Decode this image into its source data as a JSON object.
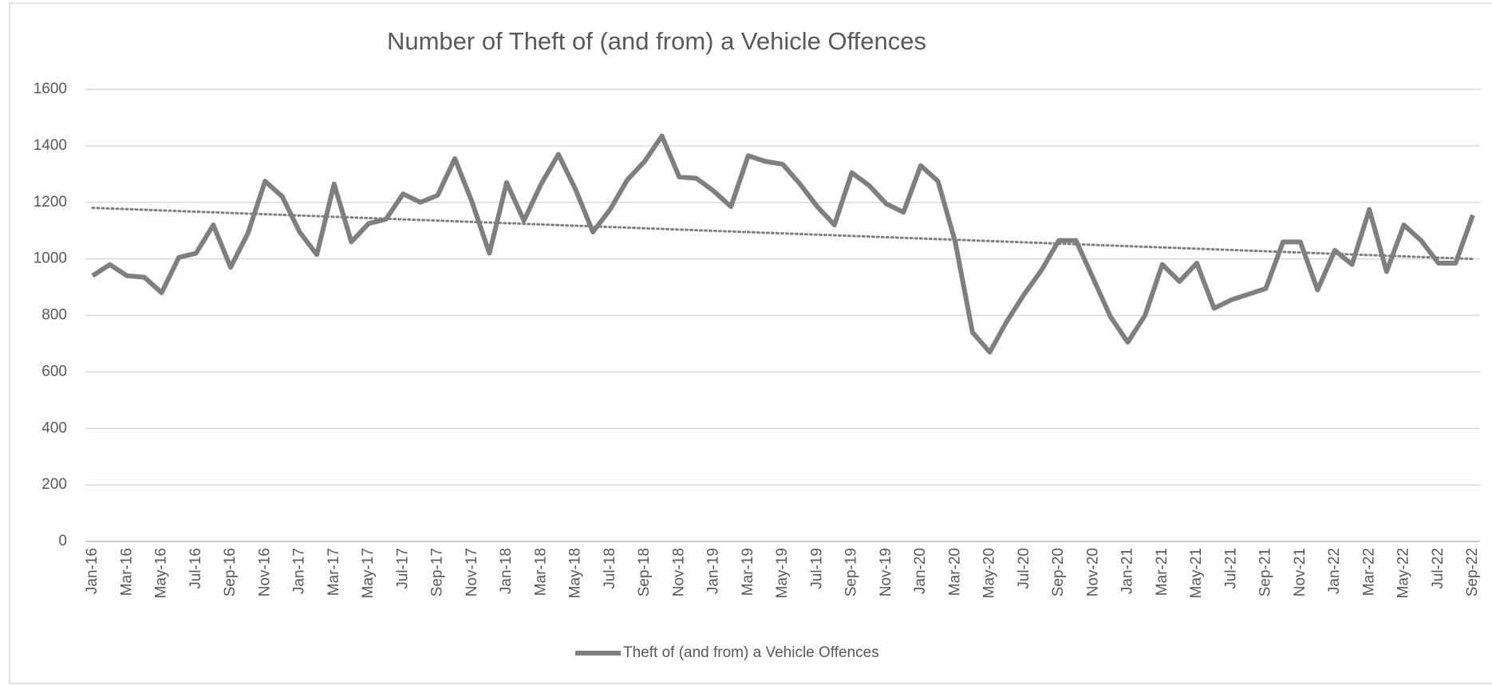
{
  "chart_data": {
    "type": "line",
    "title": "Number of Theft of (and from) a Vehicle Offences",
    "categories": [
      "Jan-16",
      null,
      "Mar-16",
      null,
      "May-16",
      null,
      "Jul-16",
      null,
      "Sep-16",
      null,
      "Nov-16",
      null,
      "Jan-17",
      null,
      "Mar-17",
      null,
      "May-17",
      null,
      "Jul-17",
      null,
      "Sep-17",
      null,
      "Nov-17",
      null,
      "Jan-18",
      null,
      "Mar-18",
      null,
      "May-18",
      null,
      "Jul-18",
      null,
      "Sep-18",
      null,
      "Nov-18",
      null,
      "Jan-19",
      null,
      "Mar-19",
      null,
      "May-19",
      null,
      "Jul-19",
      null,
      "Sep-19",
      null,
      "Nov-19",
      null,
      "Jan-20",
      null,
      "Mar-20",
      null,
      "May-20",
      null,
      "Jul-20",
      null,
      "Sep-20",
      null,
      "Nov-20",
      null,
      "Jan-21",
      null,
      "Mar-21",
      null,
      "May-21",
      null,
      "Jul-21",
      null,
      "Sep-21",
      null,
      "Nov-21",
      null,
      "Jan-22",
      null,
      "Mar-22",
      null,
      "May-22",
      null,
      "Jul-22",
      null,
      "Sep-22"
    ],
    "series": [
      {
        "name": "Theft of (and from) a Vehicle Offences",
        "color": "#7f7f7f",
        "values": [
          940,
          980,
          940,
          935,
          880,
          1005,
          1020,
          1120,
          970,
          1090,
          1275,
          1220,
          1095,
          1015,
          1265,
          1060,
          1125,
          1140,
          1230,
          1200,
          1225,
          1355,
          1200,
          1020,
          1270,
          1135,
          1265,
          1370,
          1245,
          1095,
          1175,
          1280,
          1345,
          1435,
          1290,
          1285,
          1240,
          1185,
          1365,
          1345,
          1335,
          1265,
          1185,
          1120,
          1305,
          1260,
          1195,
          1165,
          1330,
          1275,
          1060,
          740,
          670,
          780,
          875,
          960,
          1065,
          1065,
          930,
          795,
          705,
          800,
          980,
          920,
          985,
          825,
          855,
          875,
          895,
          1060,
          1060,
          890,
          1030,
          980,
          1175,
          955,
          1120,
          1065,
          985,
          985,
          1155
        ]
      }
    ],
    "trendline": true,
    "ylim": [
      0,
      1600
    ],
    "yticks": [
      0,
      200,
      400,
      600,
      800,
      1000,
      1200,
      1400,
      1600
    ],
    "grid": true,
    "legend": "bottom"
  }
}
